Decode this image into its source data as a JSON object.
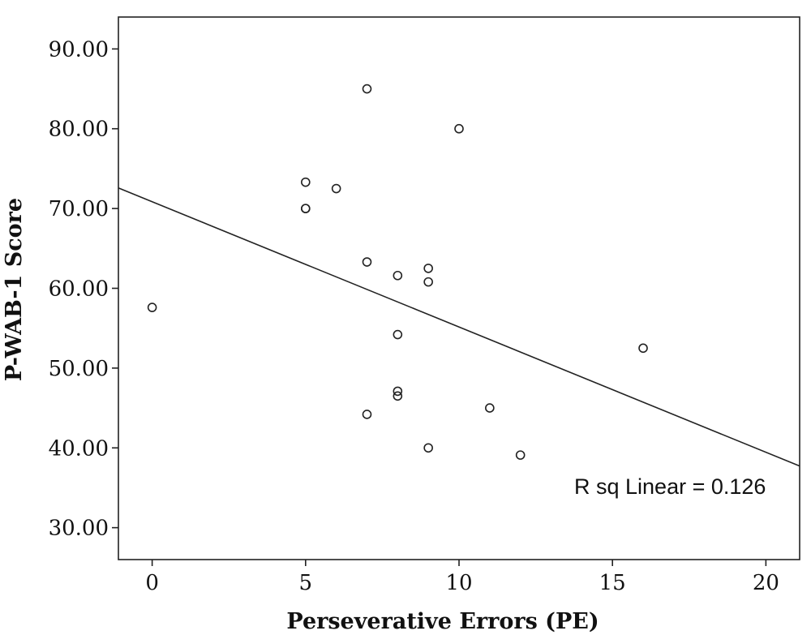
{
  "chart_data": {
    "type": "scatter",
    "xlabel": "Perseverative Errors (PE)",
    "ylabel": "P-WAB-1 Score",
    "xlim": [
      -1.1,
      21.1
    ],
    "ylim": [
      26.0,
      94.0
    ],
    "x_ticks": [
      0,
      5,
      10,
      15,
      20
    ],
    "y_ticks": [
      30,
      40,
      50,
      60,
      70,
      80,
      90
    ],
    "y_tick_labels": [
      "30.00",
      "40.00",
      "50.00",
      "60.00",
      "70.00",
      "80.00",
      "90.00"
    ],
    "points": [
      {
        "x": 0,
        "y": 57.6
      },
      {
        "x": 5,
        "y": 73.3
      },
      {
        "x": 5,
        "y": 70.0
      },
      {
        "x": 5,
        "y": 70.0
      },
      {
        "x": 6,
        "y": 72.5
      },
      {
        "x": 7,
        "y": 85.0
      },
      {
        "x": 7,
        "y": 63.3
      },
      {
        "x": 7,
        "y": 44.2
      },
      {
        "x": 8,
        "y": 61.6
      },
      {
        "x": 8,
        "y": 54.2
      },
      {
        "x": 8,
        "y": 47.1
      },
      {
        "x": 8,
        "y": 46.5
      },
      {
        "x": 9,
        "y": 62.5
      },
      {
        "x": 9,
        "y": 60.8
      },
      {
        "x": 9,
        "y": 40.0
      },
      {
        "x": 10,
        "y": 80.0
      },
      {
        "x": 11,
        "y": 45.0
      },
      {
        "x": 12,
        "y": 39.1
      },
      {
        "x": 16,
        "y": 52.5
      }
    ],
    "fit_line": {
      "intercept": 70.85,
      "slope": -1.57
    },
    "annotation": "R sq Linear = 0.126",
    "grid": false,
    "legend": "none"
  }
}
